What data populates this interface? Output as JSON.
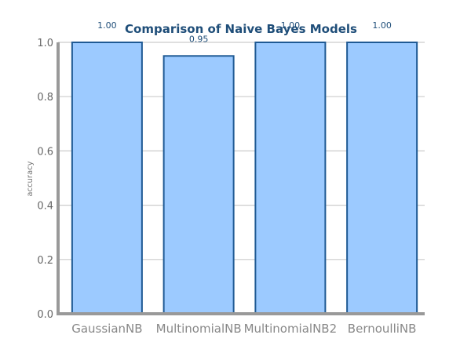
{
  "chart_data": {
    "type": "bar",
    "title": "Comparison of Naive Bayes Models",
    "xlabel": "",
    "ylabel": "accuracy",
    "categories": [
      "GaussianNB",
      "MultinomialNB",
      "MultinomialNB2",
      "BernoulliNB"
    ],
    "values": [
      1.0,
      0.95,
      1.0,
      1.0
    ],
    "data_labels": [
      "1.00",
      "0.95",
      "1.00",
      "1.00"
    ],
    "ylim": [
      0,
      1.0
    ],
    "yticks": [
      "0.0",
      "0.2",
      "0.4",
      "0.6",
      "0.8",
      "1.0"
    ],
    "grid": true,
    "colors": {
      "bar_fill": "#9ccaff",
      "bar_stroke": "#1f5a94",
      "grid": "#cccccc",
      "axis": "#999999"
    }
  }
}
